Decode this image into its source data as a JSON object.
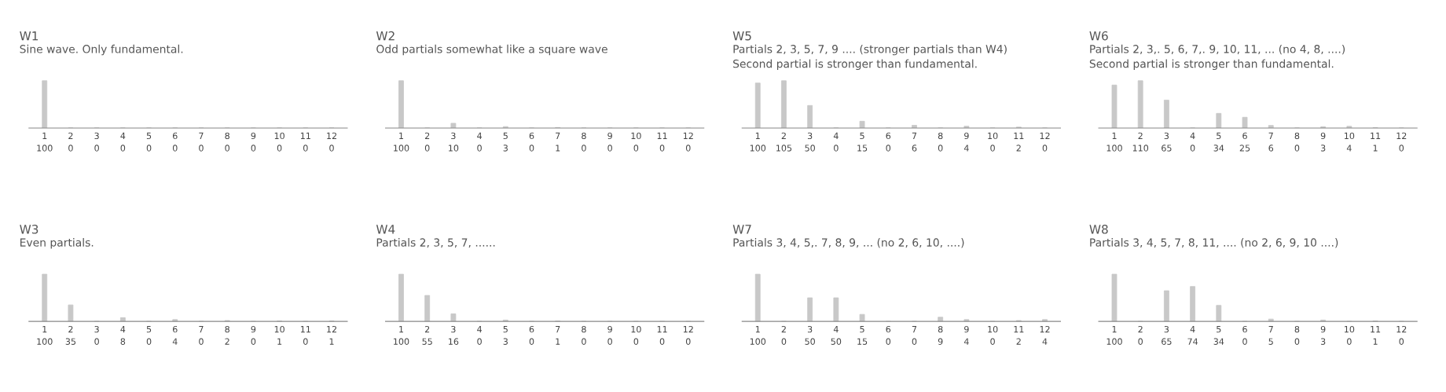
{
  "chart_data": [
    {
      "type": "bar",
      "title": "W1",
      "subtitle": "Sine wave. Only fundamental.",
      "categories": [
        "1",
        "2",
        "3",
        "4",
        "5",
        "6",
        "7",
        "8",
        "9",
        "10",
        "11",
        "12"
      ],
      "values": [
        100,
        0,
        0,
        0,
        0,
        0,
        0,
        0,
        0,
        0,
        0,
        0
      ],
      "color": "#c8c8c8",
      "data_labels": true
    },
    {
      "type": "bar",
      "title": "W2",
      "subtitle": "Odd partials somewhat like a square wave",
      "categories": [
        "1",
        "2",
        "3",
        "4",
        "5",
        "6",
        "7",
        "8",
        "9",
        "10",
        "11",
        "12"
      ],
      "values": [
        100,
        0,
        10,
        0,
        3,
        0,
        1,
        0,
        0,
        0,
        0,
        0
      ],
      "color": "#c8c8c8",
      "data_labels": true
    },
    {
      "type": "bar",
      "title": "W5",
      "subtitle": "Partials 2, 3, 5, 7, 9 .... (stronger partials than W4)\nSecond partial is stronger than fundamental.",
      "categories": [
        "1",
        "2",
        "3",
        "4",
        "5",
        "6",
        "7",
        "8",
        "9",
        "10",
        "11",
        "12"
      ],
      "values": [
        100,
        105,
        50,
        0,
        15,
        0,
        6,
        0,
        4,
        0,
        2,
        0
      ],
      "color": "#c8c8c8",
      "data_labels": true
    },
    {
      "type": "bar",
      "title": "W6",
      "subtitle": "Partials 2, 3,. 5, 6, 7,. 9, 10, 11, ... (no 4, 8, ....)\nSecond partial is stronger than fundamental.",
      "categories": [
        "1",
        "2",
        "3",
        "4",
        "5",
        "6",
        "7",
        "8",
        "9",
        "10",
        "11",
        "12"
      ],
      "values": [
        100,
        110,
        65,
        0,
        34,
        25,
        6,
        0,
        3,
        4,
        1,
        0
      ],
      "color": "#c8c8c8",
      "data_labels": true
    },
    {
      "type": "bar",
      "title": "W3",
      "subtitle": "Even partials.",
      "categories": [
        "1",
        "2",
        "3",
        "4",
        "5",
        "6",
        "7",
        "8",
        "9",
        "10",
        "11",
        "12"
      ],
      "values": [
        100,
        35,
        0,
        8,
        0,
        4,
        0,
        2,
        0,
        1,
        0,
        1
      ],
      "color": "#c8c8c8",
      "data_labels": true
    },
    {
      "type": "bar",
      "title": "W4",
      "subtitle": "Partials 2, 3, 5, 7, ......",
      "categories": [
        "1",
        "2",
        "3",
        "4",
        "5",
        "6",
        "7",
        "8",
        "9",
        "10",
        "11",
        "12"
      ],
      "values": [
        100,
        55,
        16,
        0,
        3,
        0,
        1,
        0,
        0,
        0,
        0,
        0
      ],
      "color": "#c8c8c8",
      "data_labels": true
    },
    {
      "type": "bar",
      "title": "W7",
      "subtitle": "Partials 3, 4, 5,. 7, 8, 9, ... (no 2, 6, 10, ....)",
      "categories": [
        "1",
        "2",
        "3",
        "4",
        "5",
        "6",
        "7",
        "8",
        "9",
        "10",
        "11",
        "12"
      ],
      "values": [
        100,
        0,
        50,
        50,
        15,
        0,
        0,
        9,
        4,
        0,
        2,
        4
      ],
      "color": "#c8c8c8",
      "data_labels": true
    },
    {
      "type": "bar",
      "title": "W8",
      "subtitle": "Partials 3, 4, 5, 7, 8, 11, .... (no 2, 6, 9, 10 ....)",
      "categories": [
        "1",
        "2",
        "3",
        "4",
        "5",
        "6",
        "7",
        "8",
        "9",
        "10",
        "11",
        "12"
      ],
      "values": [
        100,
        0,
        65,
        74,
        34,
        0,
        5,
        0,
        3,
        0,
        1,
        0
      ],
      "color": "#c8c8c8",
      "data_labels": true
    }
  ]
}
